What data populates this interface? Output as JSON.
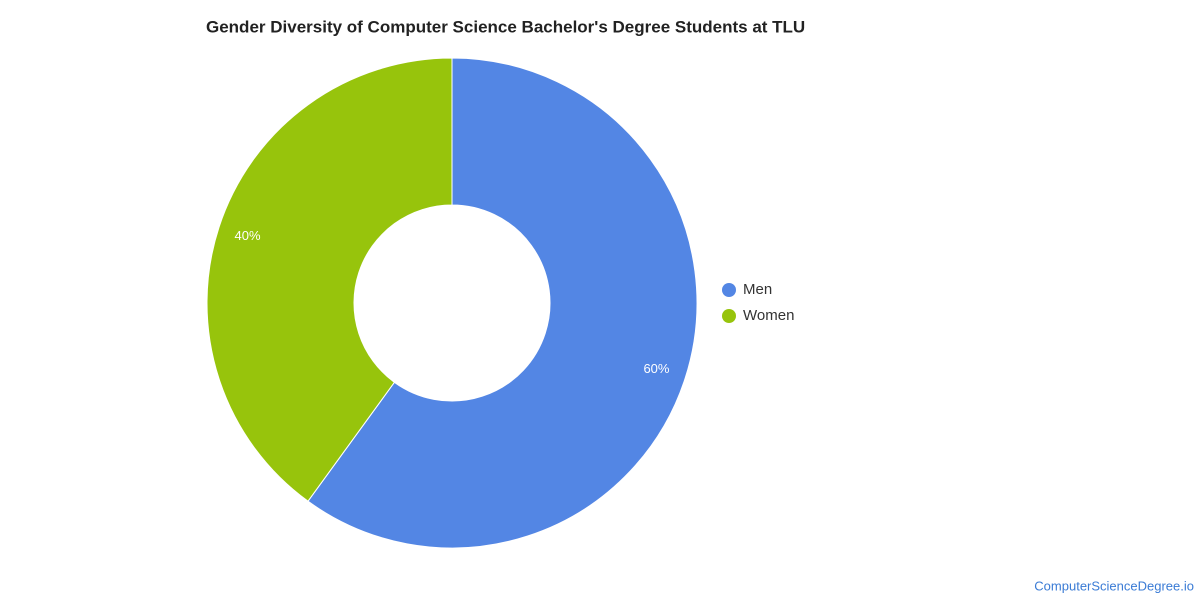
{
  "chart_data": {
    "type": "donut",
    "title": "Gender Diversity of Computer Science Bachelor's Degree Students at TLU",
    "series": [
      {
        "name": "Men",
        "color": "#5386e4",
        "values": [
          60
        ],
        "value_labels": [
          "60%"
        ]
      },
      {
        "name": "Women",
        "color": "#97c40c",
        "values": [
          40
        ],
        "value_labels": [
          "40%"
        ]
      }
    ],
    "legend": "right",
    "source": "ComputerScienceDegree.io"
  }
}
